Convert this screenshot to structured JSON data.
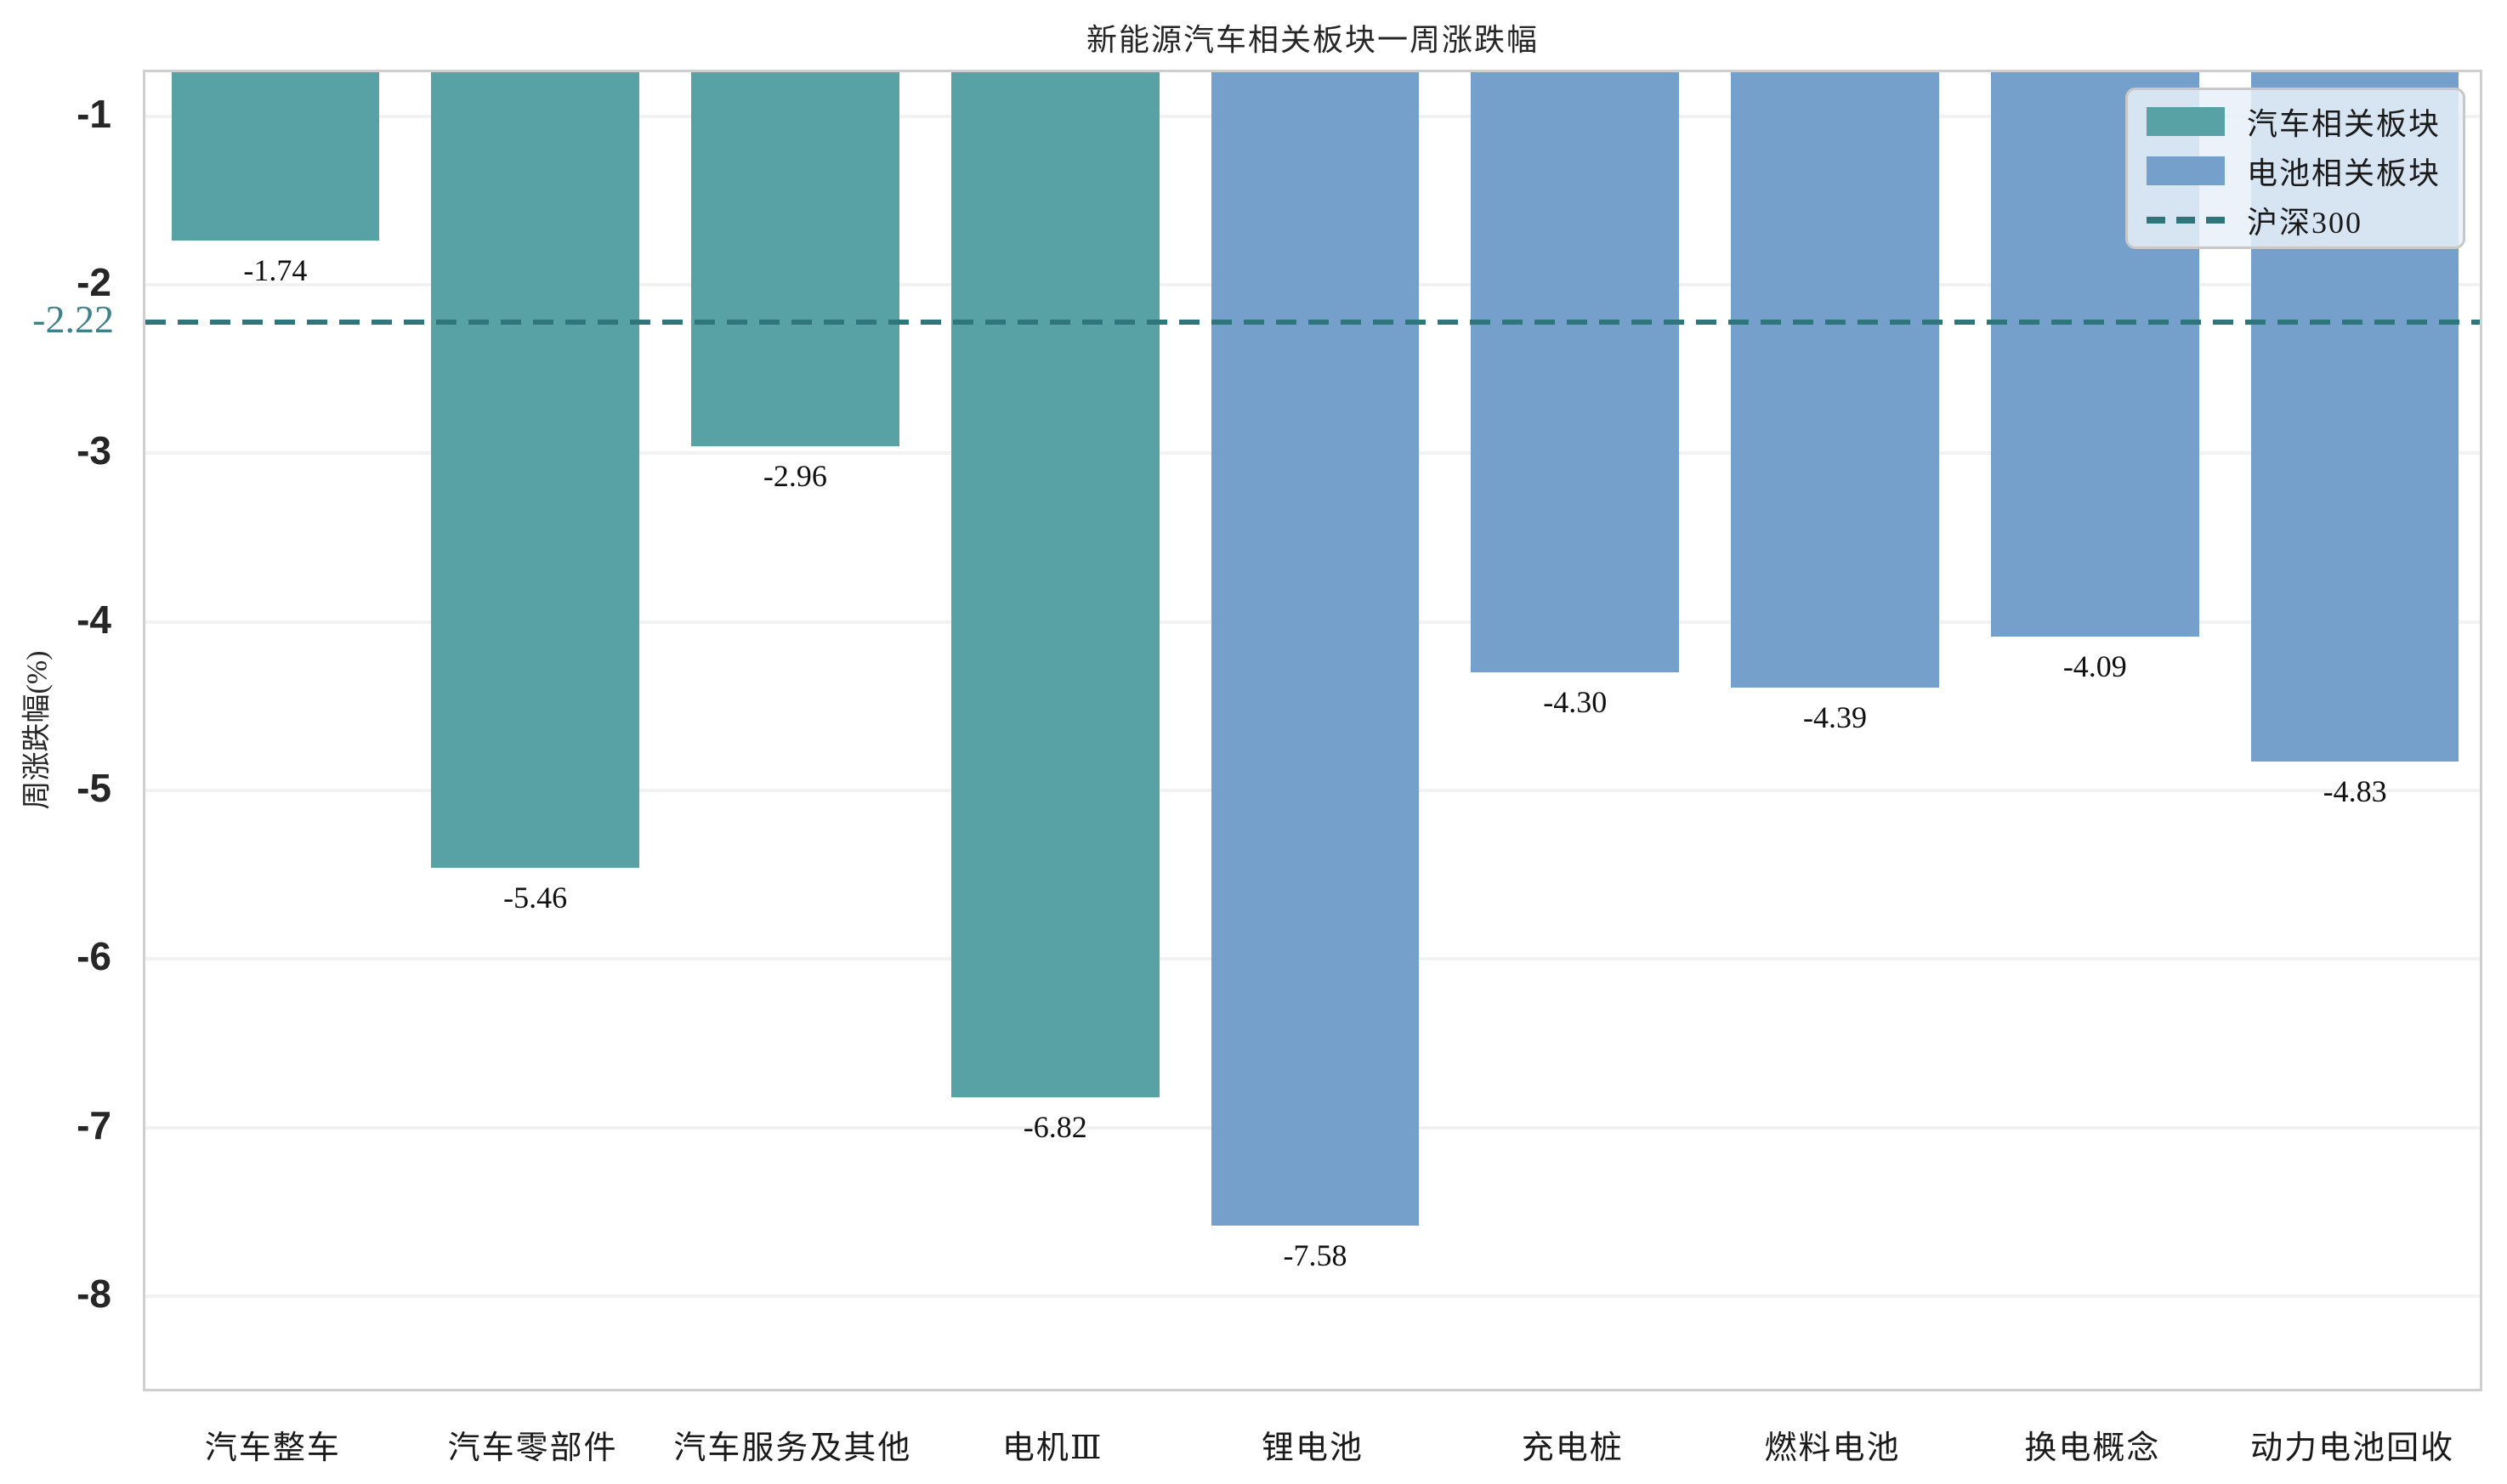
{
  "figure": {
    "background": "#ffffff"
  },
  "chart_data": {
    "type": "bar",
    "title": "新能源汽车相关板块一周涨跌幅",
    "xlabel": "",
    "ylabel": "周涨跌幅(%)",
    "categories": [
      "汽车整车",
      "汽车零部件",
      "汽车服务及其他",
      "电机Ⅲ",
      "锂电池",
      "充电桩",
      "燃料电池",
      "换电概念",
      "动力电池回收"
    ],
    "values": [
      -1.74,
      -5.46,
      -2.96,
      -6.82,
      -7.58,
      -4.3,
      -4.39,
      -4.09,
      -4.83
    ],
    "value_labels": [
      "-1.74",
      "-5.46",
      "-2.96",
      "-6.82",
      "-7.58",
      "-4.30",
      "-4.39",
      "-4.09",
      "-4.83"
    ],
    "bar_groups": [
      "auto",
      "auto",
      "auto",
      "auto",
      "battery",
      "battery",
      "battery",
      "battery",
      "battery"
    ],
    "groups": {
      "auto": {
        "label": "汽车相关板块",
        "color": "#58a2a6"
      },
      "battery": {
        "label": "电池相关板块",
        "color": "#76a0cc"
      }
    },
    "benchmark": {
      "label": "沪深300",
      "value": -2.22,
      "value_label": "-2.22",
      "color": "#2e767c",
      "style": "dashed"
    },
    "yticks": [
      -1,
      -2,
      -3,
      -4,
      -5,
      -6,
      -7,
      -8
    ],
    "ylim": [
      -8.58,
      -0.74
    ],
    "grid": true,
    "legend": {
      "position": "upper-right",
      "entries": [
        {
          "key": "auto",
          "label": "汽车相关板块",
          "swatch": "patch",
          "color": "#58a2a6"
        },
        {
          "key": "battery",
          "label": "电池相关板块",
          "swatch": "patch",
          "color": "#76a0cc"
        },
        {
          "key": "benchmark",
          "label": "沪深300",
          "swatch": "dashed-line",
          "color": "#2e767c"
        }
      ]
    },
    "colors": {
      "grid": "#f2f2f2",
      "spine": "#cfcfcf",
      "tick_label": "#262626",
      "value_label": "#111111",
      "benchmark_text": "#3c828c",
      "legend_background": "rgba(233,240,248,0.85)",
      "legend_border": "#c8c8c8"
    }
  }
}
